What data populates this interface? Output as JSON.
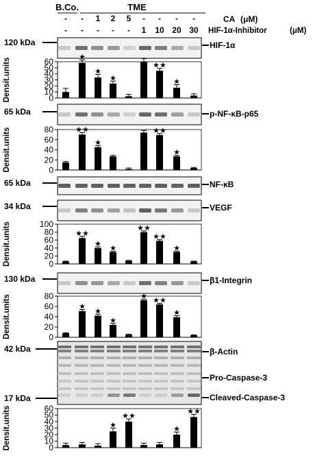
{
  "header": {
    "group_bco": "B.Co.",
    "group_tme": "TME",
    "row_ca": {
      "label": "CA",
      "unit": "(μM)",
      "cells": [
        "-",
        "-",
        "1",
        "2",
        "5",
        "-",
        "-",
        "-",
        "-"
      ]
    },
    "row_inhibitor": {
      "label": "HIF-1α-Inhibitor",
      "unit": "(μM)",
      "cells": [
        "-",
        "-",
        "-",
        "-",
        "-",
        "1",
        "10",
        "20",
        "30"
      ]
    }
  },
  "lane_count": 9,
  "ylabel": "Densit.units",
  "blots": [
    {
      "label": "HIF-1α",
      "marker": "120 kDa"
    },
    {
      "label": "p-NF-κB-p65",
      "marker": "65 kDa"
    },
    {
      "label": "NF-κB",
      "marker": "65 kDa"
    },
    {
      "label": "VEGF",
      "marker": "34 kDa"
    },
    {
      "label": "β1-Integrin",
      "marker": "130 kDa"
    },
    {
      "label": "β-Actin",
      "marker": "42 kDa"
    },
    {
      "label": "Pro-Caspase-3",
      "marker": ""
    },
    {
      "label": "Cleaved-Caspase-3",
      "marker": "17 kDa"
    }
  ],
  "chart_data": [
    {
      "type": "bar",
      "target": "HIF-1α",
      "ylabel": "Densit.units",
      "ylim": [
        0,
        60
      ],
      "yticks": [
        0,
        10,
        20,
        30,
        40,
        50,
        60
      ],
      "values": [
        10,
        58,
        34,
        24,
        3,
        60,
        45,
        17,
        4
      ],
      "errors": [
        6,
        5,
        5,
        4,
        3,
        5,
        4,
        5,
        3
      ],
      "stars": [
        "",
        "★",
        "★",
        "★",
        "",
        "",
        "★★",
        "★",
        ""
      ]
    },
    {
      "type": "bar",
      "target": "p-NF-κB-p65",
      "ylabel": "Densit.units",
      "ylim": [
        0,
        80
      ],
      "yticks": [
        0,
        20,
        40,
        60,
        80
      ],
      "values": [
        15,
        70,
        45,
        27,
        2,
        74,
        69,
        27,
        4
      ],
      "errors": [
        2,
        4,
        3,
        2,
        2,
        4,
        3,
        2,
        1
      ],
      "stars": [
        "",
        "★★",
        "★",
        "",
        "",
        "",
        "★★",
        "★",
        ""
      ]
    },
    {
      "type": "bar",
      "target": "VEGF",
      "ylabel": "Densit.units",
      "ylim": [
        0,
        100
      ],
      "yticks": [
        0,
        20,
        40,
        60,
        80,
        100
      ],
      "values": [
        6,
        65,
        40,
        30,
        8,
        80,
        58,
        30,
        6
      ],
      "errors": [
        1,
        4,
        3,
        2,
        1,
        3,
        3,
        2,
        1
      ],
      "stars": [
        "",
        "★★",
        "★",
        "★",
        "",
        "★★",
        "★★",
        "★",
        ""
      ]
    },
    {
      "type": "bar",
      "target": "β1-Integrin",
      "ylabel": "Densit.units",
      "ylim": [
        0,
        80
      ],
      "yticks": [
        0,
        20,
        40,
        60,
        80
      ],
      "values": [
        8,
        51,
        42,
        24,
        5,
        72,
        64,
        39,
        4
      ],
      "errors": [
        1,
        3,
        3,
        3,
        1,
        2,
        2,
        3,
        1
      ],
      "stars": [
        "",
        "★",
        "★",
        "★",
        "",
        "★",
        "★★",
        "★",
        ""
      ]
    },
    {
      "type": "bar",
      "target": "Cleaved-Caspase-3",
      "ylabel": "Densit.units",
      "ylim": [
        0,
        60
      ],
      "yticks": [
        0,
        10,
        20,
        30,
        40,
        50,
        60
      ],
      "values": [
        4,
        5,
        3,
        25,
        40,
        4,
        5,
        20,
        47
      ],
      "errors": [
        3,
        3,
        3,
        5,
        4,
        3,
        3,
        4,
        4
      ],
      "stars": [
        "",
        "",
        "",
        "★",
        "★★",
        "",
        "",
        "★",
        "★★"
      ]
    }
  ]
}
